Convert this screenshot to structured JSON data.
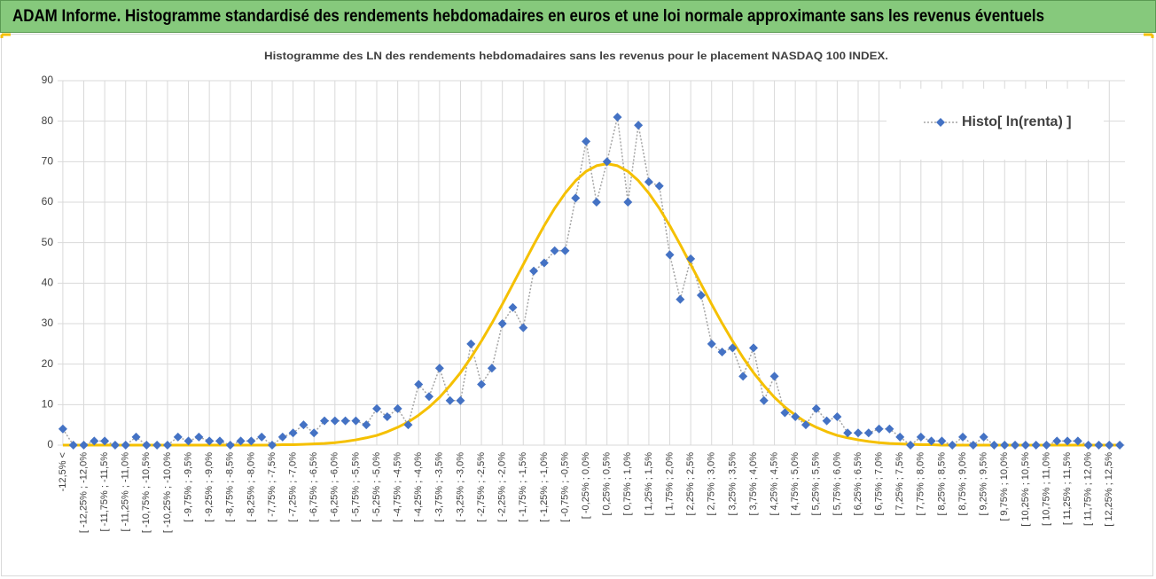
{
  "header": {
    "title": "ADAM Informe. Histogramme standardisé des rendements hebdomadaires en euros et une loi normale approximante sans les revenus éventuels"
  },
  "chart_data": {
    "type": "line",
    "title": "Histogramme  des LN des rendements hebdomadaires sans les revenus pour le placement NASDAQ 100 INDEX.",
    "categories": [
      "-12,5% <",
      null,
      "[ -12,25% ; -12,0%",
      null,
      "[ -11,75% ; -11,5%",
      null,
      "[ -11,25% ; -11,0%",
      null,
      "[ -10,75% ; -10,5%",
      null,
      "[ -10,25% ; -10,0%",
      null,
      "[ -9,75% ; -9,5%",
      null,
      "[ -9,25% ; -9,0%",
      null,
      "[ -8,75% ; -8,5%",
      null,
      "[ -8,25% ; -8,0%",
      null,
      "[ -7,75% ; -7,5%",
      null,
      "[ -7,25% ; -7,0%",
      null,
      "[ -6,75% ; -6,5%",
      null,
      "[ -6,25% ; -6,0%",
      null,
      "[ -5,75% ; -5,5%",
      null,
      "[ -5,25% ; -5,0%",
      null,
      "[ -4,75% ; -4,5%",
      null,
      "[ -4,25% ; -4,0%",
      null,
      "[ -3,75% ; -3,5%",
      null,
      "[ -3,25% ; -3,0%",
      null,
      "[ -2,75% ; -2,5%",
      null,
      "[ -2,25% ; -2,0%",
      null,
      "[ -1,75% ; -1,5%",
      null,
      "[ -1,25% ; -1,0%",
      null,
      "[ -0,75% ; -0,5%",
      null,
      "[ -0,25% ; 0,0%",
      null,
      "[ 0,25% ; 0,5%",
      null,
      "[ 0,75% ; 1,0%",
      null,
      "[ 1,25% ; 1,5%",
      null,
      "[ 1,75% ; 2,0%",
      null,
      "[ 2,25% ; 2,5%",
      null,
      "[ 2,75% ; 3,0%",
      null,
      "[ 3,25% ; 3,5%",
      null,
      "[ 3,75% ; 4,0%",
      null,
      "[ 4,25% ; 4,5%",
      null,
      "[ 4,75% ; 5,0%",
      null,
      "[ 5,25% ; 5,5%",
      null,
      "[ 5,75% ; 6,0%",
      null,
      "[ 6,25% ; 6,5%",
      null,
      "[ 6,75% ; 7,0%",
      null,
      "[ 7,25% ; 7,5%",
      null,
      "[ 7,75% ; 8,0%",
      null,
      "[ 8,25% ; 8,5%",
      null,
      "[ 8,75% ; 9,0%",
      null,
      "[ 9,25% ; 9,5%",
      null,
      "[ 9,75% ; 10,0%",
      null,
      "[ 10,25% ; 10,5%",
      null,
      "[ 10,75% ; 11,0%",
      null,
      "[ 11,25% ; 11,5%",
      null,
      "[ 11,75% ; 12,0%",
      null,
      "[ 12,25% ; 12,5%",
      null
    ],
    "series": [
      {
        "name": "Histo[ ln(renta) ]",
        "color": "#4472c4",
        "values": [
          4,
          0,
          0,
          1,
          1,
          0,
          0,
          2,
          0,
          0,
          0,
          2,
          1,
          2,
          1,
          1,
          0,
          1,
          1,
          2,
          0,
          2,
          3,
          5,
          3,
          6,
          6,
          6,
          6,
          5,
          9,
          7,
          9,
          5,
          15,
          12,
          19,
          11,
          11,
          25,
          15,
          19,
          30,
          34,
          29,
          43,
          45,
          48,
          48,
          61,
          75,
          60,
          70,
          81,
          60,
          79,
          65,
          64,
          47,
          36,
          46,
          37,
          25,
          23,
          24,
          17,
          24,
          11,
          17,
          8,
          7,
          5,
          9,
          6,
          7,
          3,
          3,
          3,
          4,
          4,
          2,
          0,
          2,
          1,
          1,
          0,
          2,
          0,
          2,
          0,
          0,
          0,
          0,
          0,
          0,
          1,
          1,
          1,
          0,
          0,
          0,
          0
        ]
      },
      {
        "color": "#f5c000",
        "values": [
          0,
          0,
          0,
          0,
          0,
          0,
          0,
          0,
          0,
          0,
          0,
          0,
          0,
          0,
          0,
          0,
          0,
          0,
          0,
          0,
          0,
          0.1,
          0.1,
          0.2,
          0.3,
          0.4,
          0.6,
          0.9,
          1.3,
          1.8,
          2.4,
          3.3,
          4.4,
          5.7,
          7.4,
          9.4,
          11.8,
          14.7,
          17.9,
          21.6,
          25.7,
          30.1,
          34.8,
          39.7,
          44.6,
          49.5,
          54.2,
          58.5,
          62.2,
          65.3,
          67.6,
          69.0,
          69.5,
          69.0,
          67.6,
          65.3,
          62.2,
          58.5,
          54.2,
          49.5,
          44.6,
          39.7,
          34.8,
          30.1,
          25.7,
          21.6,
          17.9,
          14.7,
          11.8,
          9.4,
          7.4,
          5.7,
          4.4,
          3.3,
          2.4,
          1.8,
          1.3,
          0.9,
          0.6,
          0.4,
          0.3,
          0.2,
          0.1,
          0.1,
          0,
          0,
          0,
          0,
          0,
          0,
          0,
          0,
          0,
          0,
          0,
          0,
          0,
          0,
          0,
          0,
          0,
          0
        ]
      }
    ],
    "ylim": [
      0,
      90
    ],
    "yticks": [
      0,
      10,
      20,
      30,
      40,
      50,
      60,
      70,
      80,
      90
    ],
    "grid": true,
    "legend": "upper right"
  }
}
